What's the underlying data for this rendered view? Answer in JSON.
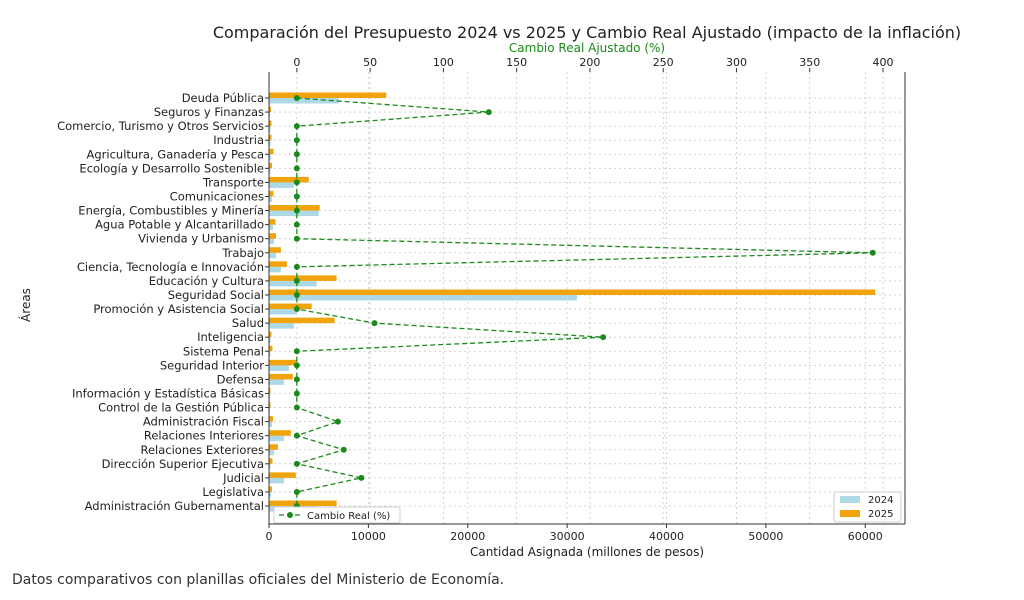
{
  "caption": "Datos comparativos con planillas oficiales del Ministerio de Economía.",
  "colors": {
    "y2024": "#add8e6",
    "y2025": "#f0a30a",
    "cambio": "#1a8a1a",
    "grid": "#c8c8c8"
  },
  "chart_data": {
    "type": "bar",
    "orientation": "horizontal",
    "title": "Comparación del Presupuesto 2024 vs 2025 y Cambio Real Ajustado (impacto de la inflación)",
    "xlabel": "Cantidad Asignada (millones de pesos)",
    "ylabel": "Áreas",
    "x2label": "Cambio Real Ajustado (%)",
    "xlim": [
      0,
      64000
    ],
    "x2lim": [
      -19,
      415
    ],
    "xticks": [
      0,
      10000,
      20000,
      30000,
      40000,
      50000,
      60000
    ],
    "x2ticks": [
      0,
      50,
      100,
      150,
      200,
      250,
      300,
      350,
      400
    ],
    "grid": true,
    "legend_position": "bottom-right",
    "categories": [
      "Deuda Pública",
      "Seguros y Finanzas",
      "Comercio, Turismo y Otros Servicios",
      "Industria",
      "Agricultura, Ganadería y Pesca",
      "Ecología y Desarrollo Sostenible",
      "Transporte",
      "Comunicaciones",
      "Energía, Combustibles y Minería",
      "Agua Potable y Alcantarillado",
      "Vivienda y Urbanismo",
      "Trabajo",
      "Ciencia, Tecnología e Innovación",
      "Educación y Cultura",
      "Seguridad Social",
      "Promoción y Asistencia Social",
      "Salud",
      "Inteligencia",
      "Sistema Penal",
      "Seguridad Interior",
      "Defensa",
      "Información y Estadística Básicas",
      "Control de la Gestión Pública",
      "Administración Fiscal",
      "Relaciones Interiores",
      "Relaciones Exteriores",
      "Dirección Superior Ejecutiva",
      "Judicial",
      "Legislativa",
      "Administración Gubernamental"
    ],
    "series": [
      {
        "name": "2024",
        "values": [
          7000,
          100,
          150,
          150,
          200,
          150,
          2500,
          300,
          5000,
          400,
          500,
          700,
          1200,
          4800,
          31000,
          2800,
          2500,
          150,
          150,
          2000,
          1500,
          100,
          100,
          300,
          1500,
          500,
          150,
          1500,
          200,
          4800
        ]
      },
      {
        "name": "2025",
        "values": [
          11800,
          200,
          250,
          250,
          450,
          300,
          4000,
          450,
          5100,
          650,
          700,
          1200,
          1800,
          6800,
          61000,
          4300,
          6600,
          250,
          350,
          2800,
          2400,
          150,
          150,
          400,
          2200,
          900,
          350,
          2700,
          300,
          6800
        ]
      },
      {
        "name": "Cambio Real (%)",
        "axis": "top",
        "values": [
          0,
          131,
          0,
          0,
          0,
          0,
          0,
          0,
          0,
          0,
          0,
          393,
          0,
          0,
          0,
          0,
          53,
          209,
          0,
          0,
          0,
          0,
          0,
          28,
          0,
          32,
          0,
          44,
          0,
          0
        ]
      }
    ]
  }
}
